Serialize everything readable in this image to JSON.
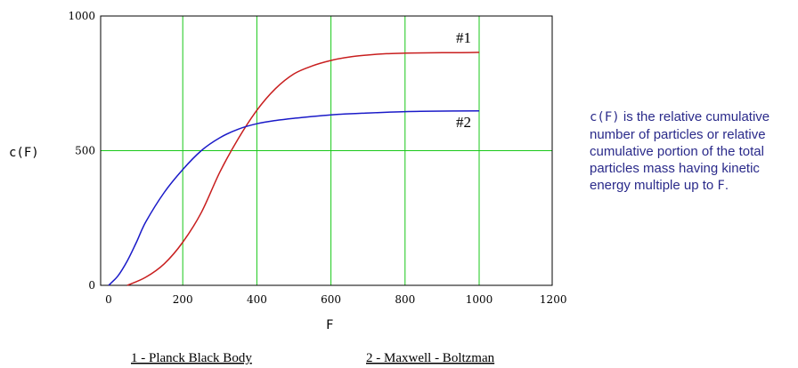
{
  "chart_data": {
    "type": "line",
    "xlabel": "F",
    "ylabel": "c(F)",
    "xlim": [
      0,
      1200
    ],
    "ylim": [
      0,
      1000
    ],
    "grid": true,
    "x_ticks": [
      "0",
      "200",
      "400",
      "600",
      "800",
      "1000",
      "1200"
    ],
    "y_ticks": [
      "0",
      "500",
      "1000"
    ],
    "series": [
      {
        "name": "#1",
        "color": "#c81e1e",
        "x": [
          50,
          100,
          150,
          200,
          250,
          300,
          350,
          400,
          450,
          500,
          550,
          600,
          650,
          700,
          750,
          800,
          850,
          900,
          950,
          1000
        ],
        "y": [
          0,
          30,
          80,
          160,
          270,
          420,
          545,
          650,
          730,
          785,
          815,
          835,
          848,
          855,
          860,
          862,
          863,
          864,
          864,
          865
        ]
      },
      {
        "name": "#2",
        "color": "#1a1ac8",
        "x": [
          0,
          25,
          50,
          75,
          100,
          150,
          200,
          250,
          300,
          350,
          400,
          450,
          500,
          600,
          700,
          800,
          900,
          1000
        ],
        "y": [
          0,
          35,
          90,
          160,
          235,
          345,
          430,
          500,
          548,
          580,
          600,
          612,
          620,
          633,
          640,
          645,
          647,
          648
        ]
      }
    ]
  },
  "captions": {
    "left": "1 - Planck Black Body",
    "right": "2 - Maxwell - Boltzman"
  },
  "note": {
    "part1": "c(F)",
    "part2": " is the relative cumulative number of particles or relative cumulative portion of the total particles mass having kinetic energy multiple up to ",
    "part3": "F",
    "part4": "."
  }
}
